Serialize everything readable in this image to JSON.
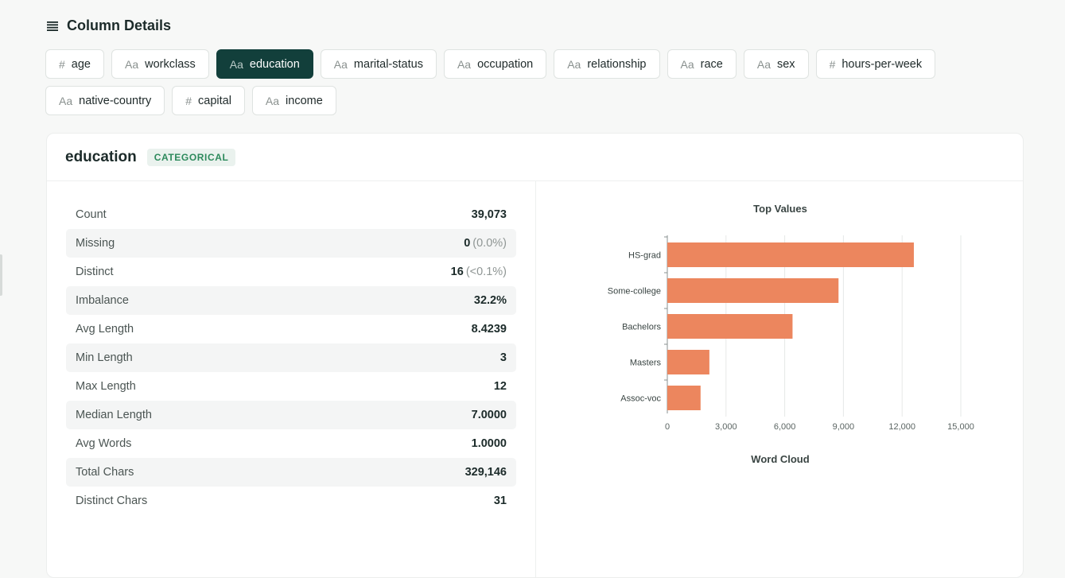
{
  "header": {
    "title": "Column Details",
    "icon": "list-icon"
  },
  "columns": [
    {
      "type_icon": "#",
      "name": "age",
      "active": false
    },
    {
      "type_icon": "Aa",
      "name": "workclass",
      "active": false
    },
    {
      "type_icon": "Aa",
      "name": "education",
      "active": true
    },
    {
      "type_icon": "Aa",
      "name": "marital-status",
      "active": false
    },
    {
      "type_icon": "Aa",
      "name": "occupation",
      "active": false
    },
    {
      "type_icon": "Aa",
      "name": "relationship",
      "active": false
    },
    {
      "type_icon": "Aa",
      "name": "race",
      "active": false
    },
    {
      "type_icon": "Aa",
      "name": "sex",
      "active": false
    },
    {
      "type_icon": "#",
      "name": "hours-per-week",
      "active": false
    },
    {
      "type_icon": "Aa",
      "name": "native-country",
      "active": false
    },
    {
      "type_icon": "#",
      "name": "capital",
      "active": false
    },
    {
      "type_icon": "Aa",
      "name": "income",
      "active": false
    }
  ],
  "detail": {
    "column_name": "education",
    "type_badge": "CATEGORICAL",
    "stats": [
      {
        "label": "Count",
        "value": "39,073",
        "sub": ""
      },
      {
        "label": "Missing",
        "value": "0",
        "sub": "(0.0%)"
      },
      {
        "label": "Distinct",
        "value": "16",
        "sub": "(<0.1%)"
      },
      {
        "label": "Imbalance",
        "value": "32.2%",
        "sub": ""
      },
      {
        "label": "Avg Length",
        "value": "8.4239",
        "sub": ""
      },
      {
        "label": "Min Length",
        "value": "3",
        "sub": ""
      },
      {
        "label": "Max Length",
        "value": "12",
        "sub": ""
      },
      {
        "label": "Median Length",
        "value": "7.0000",
        "sub": ""
      },
      {
        "label": "Avg Words",
        "value": "1.0000",
        "sub": ""
      },
      {
        "label": "Total Chars",
        "value": "329,146",
        "sub": ""
      },
      {
        "label": "Distinct Chars",
        "value": "31",
        "sub": ""
      }
    ],
    "word_cloud_title": "Word Cloud"
  },
  "colors": {
    "accent": "#123f3b",
    "bar": "#ec865e",
    "badge_text": "#2d8a5c",
    "badge_bg": "#eaf2ee"
  },
  "chart_data": {
    "type": "bar",
    "orientation": "horizontal",
    "title": "Top Values",
    "categories": [
      "HS-grad",
      "Some-college",
      "Bachelors",
      "Masters",
      "Assoc-voc"
    ],
    "values": [
      12600,
      8750,
      6400,
      2150,
      1700
    ],
    "xlim": [
      0,
      15000
    ],
    "xticks": [
      0,
      3000,
      6000,
      9000,
      12000,
      15000
    ],
    "xtick_labels": [
      "0",
      "3,000",
      "6,000",
      "9,000",
      "12,000",
      "15,000"
    ],
    "xlabel": "",
    "ylabel": "",
    "grid": "vertical"
  }
}
